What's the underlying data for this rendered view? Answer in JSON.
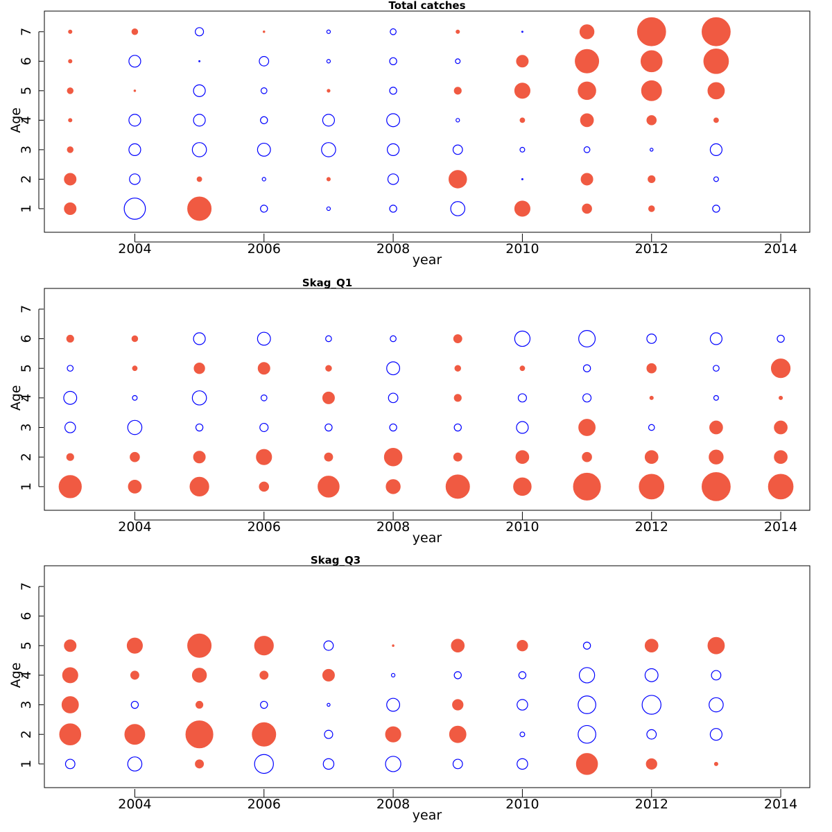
{
  "colors": {
    "positive": "#f05a42",
    "negative": "#0000ff",
    "axis": "#000000"
  },
  "chart_data": [
    {
      "type": "scatter",
      "subtype": "bubble",
      "title": "Total catches",
      "xlabel": "year",
      "ylabel": "Age",
      "xlim": [
        2002.6,
        2014.45
      ],
      "ylim": [
        0.2,
        7.7
      ],
      "xticks": [
        2004,
        2006,
        2008,
        2010,
        2012,
        2014
      ],
      "yticks": [
        1,
        2,
        3,
        4,
        5,
        6,
        7
      ],
      "years": [
        2003,
        2004,
        2005,
        2006,
        2007,
        2008,
        2009,
        2010,
        2011,
        2012,
        2013
      ],
      "ages": [
        1,
        2,
        3,
        4,
        5,
        6,
        7
      ],
      "residuals": [
        [
          1.0,
          1.0,
          0.5,
          0.3,
          0.5,
          0.3,
          0.3
        ],
        [
          -1.8,
          -0.9,
          -1.0,
          -1.0,
          0.15,
          -1.0,
          0.5
        ],
        [
          2.0,
          0.4,
          -1.2,
          -1.0,
          -1.0,
          -0.1,
          -0.7
        ],
        [
          -0.6,
          -0.3,
          -1.1,
          -0.6,
          -0.5,
          -0.8,
          0.15
        ],
        [
          -0.3,
          0.3,
          -1.2,
          -1.0,
          0.25,
          -0.3,
          -0.3
        ],
        [
          -0.6,
          -0.9,
          -1.0,
          -1.1,
          -0.6,
          -0.6,
          -0.5
        ],
        [
          -1.2,
          1.5,
          -0.8,
          -0.3,
          0.6,
          -0.4,
          0.3
        ],
        [
          1.3,
          -0.1,
          -0.4,
          0.4,
          1.3,
          1.0,
          -0.1
        ],
        [
          0.8,
          1.0,
          -0.5,
          1.1,
          1.5,
          2.0,
          1.2
        ],
        [
          0.5,
          0.6,
          -0.25,
          0.8,
          1.7,
          1.8,
          2.4
        ],
        [
          -0.6,
          -0.4,
          -1.0,
          0.4,
          1.4,
          2.1,
          2.4
        ]
      ]
    },
    {
      "type": "scatter",
      "subtype": "bubble",
      "title": "Skag_Q1",
      "xlabel": "year",
      "ylabel": "Age",
      "xlim": [
        2002.6,
        2014.45
      ],
      "ylim": [
        0.2,
        7.7
      ],
      "xticks": [
        2004,
        2006,
        2008,
        2010,
        2012,
        2014
      ],
      "yticks": [
        1,
        2,
        3,
        4,
        5,
        6,
        7
      ],
      "years": [
        2003,
        2004,
        2005,
        2006,
        2007,
        2008,
        2009,
        2010,
        2011,
        2012,
        2013,
        2014
      ],
      "ages": [
        1,
        2,
        3,
        4,
        5,
        6
      ],
      "residuals": [
        [
          1.9,
          0.6,
          -0.9,
          -1.1,
          -0.5,
          0.6
        ],
        [
          1.1,
          0.8,
          -1.2,
          -0.4,
          0.4,
          0.5
        ],
        [
          1.6,
          1.0,
          -0.6,
          -1.2,
          0.9,
          -1.0
        ],
        [
          0.8,
          1.3,
          -0.7,
          -0.5,
          1.0,
          -1.1
        ],
        [
          1.8,
          0.7,
          -0.6,
          1.0,
          0.5,
          -0.5
        ],
        [
          1.2,
          1.5,
          -0.6,
          -0.8,
          -1.1,
          -0.5
        ],
        [
          2.0,
          0.7,
          -0.6,
          0.6,
          0.5,
          0.7
        ],
        [
          1.5,
          1.1,
          -1.0,
          -0.7,
          0.4,
          -1.3
        ],
        [
          2.3,
          0.8,
          1.4,
          -0.7,
          -0.6,
          -1.4
        ],
        [
          2.1,
          1.1,
          -0.5,
          0.3,
          0.8,
          -0.8
        ],
        [
          2.4,
          1.2,
          1.1,
          -0.4,
          -0.5,
          -1.0
        ],
        [
          2.1,
          1.1,
          1.1,
          0.3,
          1.6,
          -0.6
        ]
      ]
    },
    {
      "type": "scatter",
      "subtype": "bubble",
      "title": "Skag_Q3",
      "xlabel": "year",
      "ylabel": "Age",
      "xlim": [
        2002.6,
        2014.45
      ],
      "ylim": [
        0.2,
        7.7
      ],
      "xticks": [
        2004,
        2006,
        2008,
        2010,
        2012,
        2014
      ],
      "yticks": [
        1,
        2,
        3,
        4,
        5,
        6,
        7
      ],
      "years": [
        2003,
        2004,
        2005,
        2006,
        2007,
        2008,
        2009,
        2010,
        2011,
        2012,
        2013
      ],
      "ages": [
        1,
        2,
        3,
        4,
        5
      ],
      "residuals": [
        [
          -0.8,
          1.8,
          1.4,
          1.3,
          1.0
        ],
        [
          -1.2,
          1.7,
          -0.6,
          0.7,
          1.3
        ],
        [
          0.7,
          2.3,
          0.6,
          1.2,
          2.0
        ],
        [
          -1.6,
          2.0,
          -0.6,
          0.7,
          1.6
        ],
        [
          -0.9,
          -0.7,
          -0.25,
          1.0,
          -0.8
        ],
        [
          -1.3,
          1.3,
          -1.1,
          -0.3,
          0.15
        ],
        [
          -0.8,
          1.4,
          0.9,
          -0.6,
          1.1
        ],
        [
          -0.9,
          -0.4,
          -0.9,
          -0.6,
          0.9
        ],
        [
          1.8,
          -1.5,
          -1.5,
          -1.3,
          -0.6
        ],
        [
          0.9,
          -0.8,
          -1.6,
          -1.1,
          1.1
        ],
        [
          0.3,
          -1.0,
          -1.2,
          -0.8,
          1.4
        ]
      ]
    }
  ]
}
